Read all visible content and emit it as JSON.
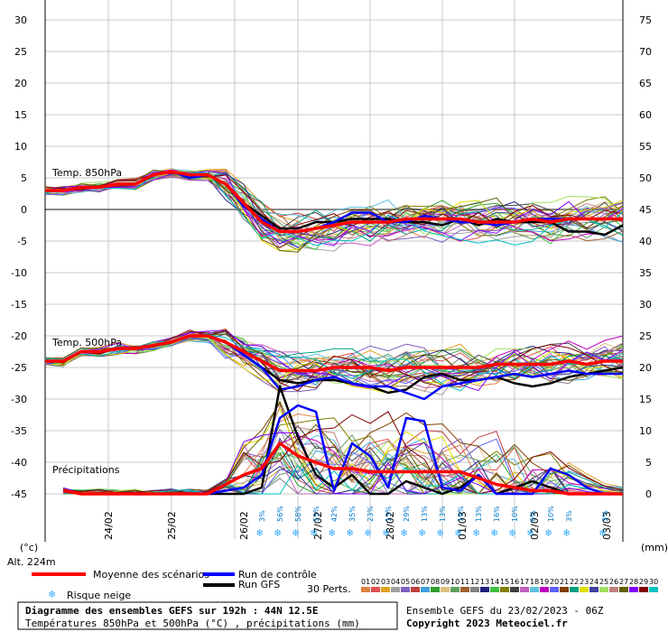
{
  "chart_data": {
    "type": "line",
    "left_ticks": [
      "30",
      "25",
      "20",
      "15",
      "10",
      "5",
      "0",
      "-5",
      "-10",
      "-15",
      "-20",
      "-25",
      "-30",
      "-35",
      "-40",
      "-45"
    ],
    "right_ticks": [
      "75",
      "70",
      "65",
      "60",
      "55",
      "50",
      "45",
      "40",
      "35",
      "30",
      "25",
      "20",
      "15",
      "10",
      "5",
      "0"
    ],
    "left_unit": "(°c)",
    "right_unit": "(mm)",
    "altitude": "Alt. 224m",
    "dates": [
      "24/02",
      "25/02",
      "26/02",
      "27/02",
      "28/02",
      "01/03",
      "02/03",
      "03/03"
    ],
    "panel_labels": {
      "t850": "Temp. 850hPa",
      "t500": "Temp. 500hPa",
      "precip": "Précipitations"
    },
    "snow_risk": [
      "3%",
      "56%",
      "58%",
      "55%",
      "42%",
      "35%",
      "23%",
      "13%",
      "29%",
      "13%",
      "13%",
      "19%",
      "13%",
      "16%",
      "10%",
      "6%",
      "10%",
      "3%",
      "3%"
    ],
    "mean_t850": [
      [
        0,
        3
      ],
      [
        6,
        3
      ],
      [
        12,
        3.5
      ],
      [
        18,
        3.5
      ],
      [
        24,
        4
      ],
      [
        30,
        4
      ],
      [
        36,
        5.5
      ],
      [
        42,
        6
      ],
      [
        48,
        5.5
      ],
      [
        54,
        5.5
      ],
      [
        60,
        4
      ],
      [
        66,
        1
      ],
      [
        72,
        -2
      ],
      [
        78,
        -3.5
      ],
      [
        84,
        -3.5
      ],
      [
        90,
        -3
      ],
      [
        96,
        -2.5
      ],
      [
        102,
        -2
      ],
      [
        108,
        -2
      ],
      [
        114,
        -2
      ],
      [
        120,
        -1.5
      ],
      [
        126,
        -1.5
      ],
      [
        132,
        -1.5
      ],
      [
        138,
        -1.5
      ],
      [
        144,
        -2
      ],
      [
        150,
        -2
      ],
      [
        156,
        -2
      ],
      [
        162,
        -1.5
      ],
      [
        168,
        -2
      ],
      [
        174,
        -1.5
      ],
      [
        180,
        -1.5
      ],
      [
        186,
        -1.5
      ],
      [
        192,
        -1.5
      ]
    ],
    "control_t850": [
      [
        0,
        3
      ],
      [
        6,
        3
      ],
      [
        12,
        3.5
      ],
      [
        18,
        3.5
      ],
      [
        24,
        4
      ],
      [
        30,
        4
      ],
      [
        36,
        5.5
      ],
      [
        42,
        6
      ],
      [
        48,
        5
      ],
      [
        54,
        5.5
      ],
      [
        60,
        4
      ],
      [
        66,
        0.5
      ],
      [
        72,
        -1.5
      ],
      [
        78,
        -3.5
      ],
      [
        84,
        -3.5
      ],
      [
        90,
        -3
      ],
      [
        96,
        -2
      ],
      [
        102,
        -0.5
      ],
      [
        108,
        -0.5
      ],
      [
        114,
        -2
      ],
      [
        120,
        -2
      ],
      [
        126,
        -1
      ],
      [
        132,
        -1.5
      ],
      [
        138,
        -2
      ],
      [
        144,
        -2
      ],
      [
        150,
        -2.5
      ],
      [
        156,
        -2
      ],
      [
        162,
        -1.5
      ],
      [
        168,
        -1.5
      ],
      [
        174,
        -1.5
      ],
      [
        180,
        -1.5
      ],
      [
        186,
        -1.5
      ],
      [
        192,
        -1.5
      ]
    ],
    "gfs_t850": [
      [
        0,
        3
      ],
      [
        6,
        3
      ],
      [
        12,
        3.5
      ],
      [
        18,
        3.5
      ],
      [
        24,
        4
      ],
      [
        30,
        4
      ],
      [
        36,
        5.5
      ],
      [
        42,
        6
      ],
      [
        48,
        5.5
      ],
      [
        54,
        5.5
      ],
      [
        60,
        4
      ],
      [
        66,
        1
      ],
      [
        72,
        -1
      ],
      [
        78,
        -3
      ],
      [
        84,
        -3
      ],
      [
        90,
        -2
      ],
      [
        96,
        -2
      ],
      [
        102,
        -1.5
      ],
      [
        108,
        -1.5
      ],
      [
        114,
        -1.5
      ],
      [
        120,
        -2
      ],
      [
        126,
        -2
      ],
      [
        132,
        -2.5
      ],
      [
        138,
        -1.5
      ],
      [
        144,
        -2.5
      ],
      [
        150,
        -1.5
      ],
      [
        156,
        -2
      ],
      [
        162,
        -2
      ],
      [
        168,
        -2
      ],
      [
        174,
        -3.5
      ],
      [
        180,
        -3.5
      ],
      [
        186,
        -4
      ],
      [
        192,
        -2.5
      ]
    ],
    "mean_t500": [
      [
        0,
        -24
      ],
      [
        6,
        -24
      ],
      [
        12,
        -22.5
      ],
      [
        18,
        -22.5
      ],
      [
        24,
        -22
      ],
      [
        30,
        -22
      ],
      [
        36,
        -21.5
      ],
      [
        42,
        -21
      ],
      [
        48,
        -20
      ],
      [
        54,
        -20
      ],
      [
        60,
        -21
      ],
      [
        66,
        -22.5
      ],
      [
        72,
        -24
      ],
      [
        78,
        -25.5
      ],
      [
        84,
        -25.5
      ],
      [
        90,
        -25.5
      ],
      [
        96,
        -25
      ],
      [
        102,
        -25
      ],
      [
        108,
        -25
      ],
      [
        114,
        -25.5
      ],
      [
        120,
        -25
      ],
      [
        126,
        -25
      ],
      [
        132,
        -25
      ],
      [
        138,
        -25
      ],
      [
        144,
        -25
      ],
      [
        150,
        -24.5
      ],
      [
        156,
        -24.5
      ],
      [
        162,
        -24.5
      ],
      [
        168,
        -24.5
      ],
      [
        174,
        -24
      ],
      [
        180,
        -24.5
      ],
      [
        186,
        -24
      ],
      [
        192,
        -24
      ]
    ],
    "control_t500": [
      [
        0,
        -24
      ],
      [
        6,
        -24
      ],
      [
        12,
        -22.5
      ],
      [
        18,
        -22.5
      ],
      [
        24,
        -22
      ],
      [
        30,
        -22
      ],
      [
        36,
        -21.5
      ],
      [
        42,
        -21
      ],
      [
        48,
        -20
      ],
      [
        54,
        -20
      ],
      [
        60,
        -21
      ],
      [
        66,
        -23
      ],
      [
        72,
        -25
      ],
      [
        78,
        -28.5
      ],
      [
        84,
        -28
      ],
      [
        90,
        -27
      ],
      [
        96,
        -26.5
      ],
      [
        102,
        -27.5
      ],
      [
        108,
        -28
      ],
      [
        114,
        -28
      ],
      [
        120,
        -29
      ],
      [
        126,
        -30
      ],
      [
        132,
        -28
      ],
      [
        138,
        -27.5
      ],
      [
        144,
        -27
      ],
      [
        150,
        -26.5
      ],
      [
        156,
        -26
      ],
      [
        162,
        -26.5
      ],
      [
        168,
        -26
      ],
      [
        174,
        -25.5
      ],
      [
        180,
        -26
      ],
      [
        186,
        -26
      ],
      [
        192,
        -26
      ]
    ],
    "gfs_t500": [
      [
        0,
        -24
      ],
      [
        6,
        -24
      ],
      [
        12,
        -22.5
      ],
      [
        18,
        -22.5
      ],
      [
        24,
        -22
      ],
      [
        30,
        -22
      ],
      [
        36,
        -21.5
      ],
      [
        42,
        -21
      ],
      [
        48,
        -20
      ],
      [
        54,
        -20
      ],
      [
        60,
        -21
      ],
      [
        66,
        -23
      ],
      [
        72,
        -25
      ],
      [
        78,
        -27
      ],
      [
        84,
        -27.5
      ],
      [
        90,
        -27
      ],
      [
        96,
        -27
      ],
      [
        102,
        -27.5
      ],
      [
        108,
        -28
      ],
      [
        114,
        -29
      ],
      [
        120,
        -28.5
      ],
      [
        126,
        -26.5
      ],
      [
        132,
        -26
      ],
      [
        138,
        -27
      ],
      [
        144,
        -27
      ],
      [
        150,
        -26.5
      ],
      [
        156,
        -27.5
      ],
      [
        162,
        -28
      ],
      [
        168,
        -27.5
      ],
      [
        174,
        -26.5
      ],
      [
        180,
        -26
      ],
      [
        186,
        -25.5
      ],
      [
        192,
        -25
      ]
    ],
    "mean_precip": [
      [
        6,
        0.5
      ],
      [
        12,
        0
      ],
      [
        18,
        0
      ],
      [
        24,
        0
      ],
      [
        30,
        0
      ],
      [
        36,
        0
      ],
      [
        42,
        0
      ],
      [
        48,
        0
      ],
      [
        54,
        0
      ],
      [
        60,
        1.5
      ],
      [
        66,
        3
      ],
      [
        72,
        4
      ],
      [
        78,
        8
      ],
      [
        84,
        6
      ],
      [
        90,
        5
      ],
      [
        96,
        4
      ],
      [
        102,
        4
      ],
      [
        108,
        3.5
      ],
      [
        114,
        3.5
      ],
      [
        120,
        3.5
      ],
      [
        126,
        3.5
      ],
      [
        132,
        3.5
      ],
      [
        138,
        3.5
      ],
      [
        144,
        2.5
      ],
      [
        150,
        1.5
      ],
      [
        156,
        1
      ],
      [
        162,
        0.5
      ],
      [
        168,
        0.5
      ],
      [
        174,
        0
      ],
      [
        180,
        0
      ],
      [
        186,
        0
      ],
      [
        192,
        0
      ]
    ],
    "control_precip": [
      [
        6,
        0.5
      ],
      [
        12,
        0
      ],
      [
        18,
        0
      ],
      [
        24,
        0
      ],
      [
        30,
        0
      ],
      [
        36,
        0
      ],
      [
        42,
        0
      ],
      [
        48,
        0
      ],
      [
        54,
        0
      ],
      [
        60,
        0.5
      ],
      [
        66,
        1
      ],
      [
        72,
        3
      ],
      [
        78,
        12
      ],
      [
        84,
        14
      ],
      [
        90,
        13
      ],
      [
        96,
        0.5
      ],
      [
        102,
        8
      ],
      [
        108,
        6
      ],
      [
        114,
        1
      ],
      [
        120,
        12
      ],
      [
        126,
        11.5
      ],
      [
        132,
        1
      ],
      [
        138,
        0.5
      ],
      [
        144,
        3
      ],
      [
        150,
        0
      ],
      [
        156,
        0
      ],
      [
        162,
        0
      ],
      [
        168,
        4
      ],
      [
        174,
        3
      ],
      [
        180,
        1
      ],
      [
        186,
        0
      ],
      [
        192,
        0
      ]
    ],
    "gfs_precip": [
      [
        6,
        0.5
      ],
      [
        12,
        0
      ],
      [
        18,
        0
      ],
      [
        24,
        0
      ],
      [
        30,
        0
      ],
      [
        36,
        0
      ],
      [
        42,
        0
      ],
      [
        48,
        0
      ],
      [
        54,
        0
      ],
      [
        60,
        0
      ],
      [
        66,
        0
      ],
      [
        72,
        1
      ],
      [
        78,
        17
      ],
      [
        84,
        9
      ],
      [
        90,
        3
      ],
      [
        96,
        1
      ],
      [
        102,
        3
      ],
      [
        108,
        0
      ],
      [
        114,
        0
      ],
      [
        120,
        2
      ],
      [
        126,
        1
      ],
      [
        132,
        0
      ],
      [
        138,
        1
      ],
      [
        144,
        3
      ],
      [
        150,
        0
      ],
      [
        156,
        1
      ],
      [
        162,
        2
      ],
      [
        168,
        1
      ],
      [
        174,
        0
      ],
      [
        180,
        0
      ],
      [
        186,
        0
      ],
      [
        192,
        0
      ]
    ],
    "legend": {
      "mean": "Moyenne des scénarios",
      "control": "Run de contrôle",
      "gfs": "Run GFS",
      "snow": "Risque neige",
      "perts": "30 Perts."
    },
    "pert_numbers": [
      "01",
      "02",
      "03",
      "04",
      "05",
      "06",
      "07",
      "08",
      "09",
      "10",
      "11",
      "12",
      "13",
      "14",
      "15",
      "16",
      "17",
      "18",
      "19",
      "20",
      "21",
      "22",
      "23",
      "24",
      "25",
      "26",
      "27",
      "28",
      "29",
      "30"
    ],
    "pert_colors": [
      "#e08040",
      "#e05050",
      "#e0a020",
      "#a0a0a0",
      "#8060c0",
      "#c04040",
      "#40a0e0",
      "#30a030",
      "#e0c080",
      "#60a060",
      "#a06030",
      "#808080",
      "#202080",
      "#40c040",
      "#808000",
      "#404040",
      "#c060c0",
      "#60c0e0",
      "#c000c0",
      "#6060ff",
      "#804000",
      "#00a080",
      "#e0e000",
      "#4040a0",
      "#a0e060",
      "#c08080",
      "#606000",
      "#8000ff",
      "#800000",
      "#00c0c0"
    ],
    "colors": {
      "mean": "#ff0000",
      "control": "#0000ff",
      "gfs": "#000000",
      "grid": "#c0c0c0",
      "snow": "#33aaff"
    }
  },
  "footer": {
    "title": "Diagramme des ensembles GEFS sur 192h : 44N 12.5E",
    "subtitle": "Températures 850hPa et 500hPa (°C) , précipitations (mm)",
    "run": "Ensemble GEFS du 23/02/2023 - 06Z",
    "copyright": "Copyright 2023 Meteociel.fr"
  }
}
